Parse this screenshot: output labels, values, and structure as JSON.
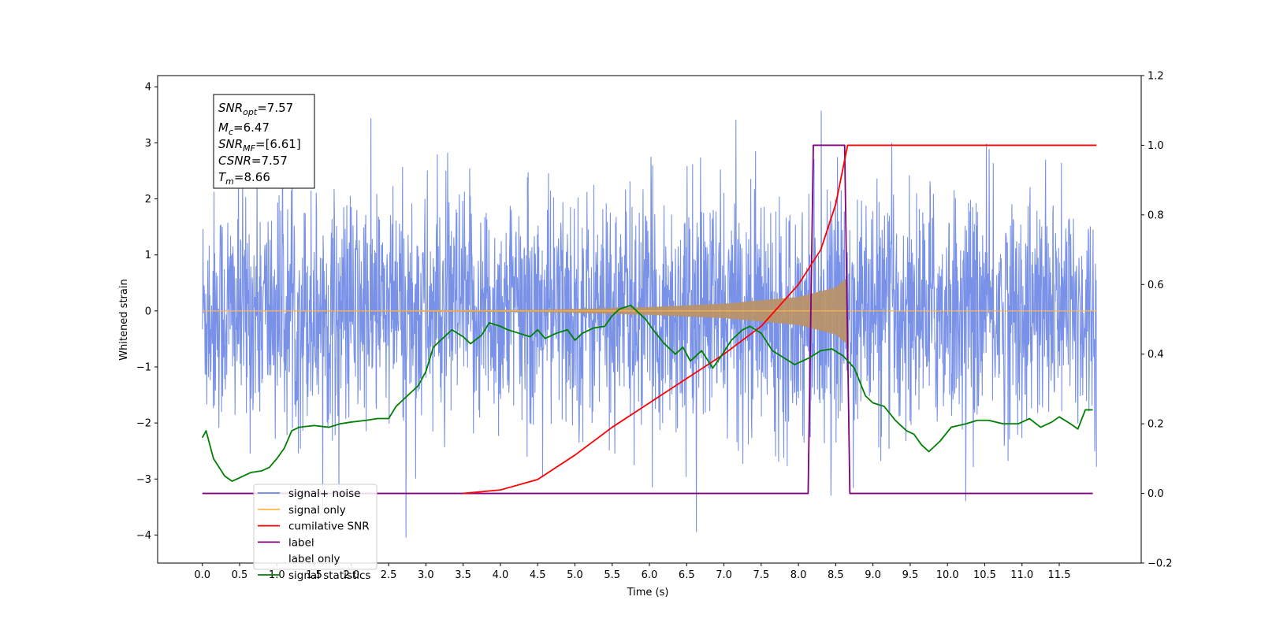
{
  "chart_data": {
    "type": "line",
    "xlabel": "Time (s)",
    "ylabel": "Whitened strain",
    "xlim": [
      -0.6,
      12.6
    ],
    "ylim": [
      -4.5,
      4.2
    ],
    "y2lim": [
      -0.2,
      1.2
    ],
    "x_ticks": [
      "0.0",
      "0.5",
      "1.0",
      "1.5",
      "2.0",
      "2.5",
      "3.0",
      "3.5",
      "4.0",
      "4.5",
      "5.0",
      "5.5",
      "6.0",
      "6.5",
      "7.0",
      "7.5",
      "8.0",
      "8.5",
      "9.0",
      "9.5",
      "10.0",
      "10.5",
      "11.0",
      "11.5"
    ],
    "y_ticks": [
      "4",
      "3",
      "2",
      "1",
      "0",
      "−1",
      "−2",
      "−3",
      "−4"
    ],
    "y2_ticks": [
      "1.2",
      "1.0",
      "0.8",
      "0.6",
      "0.4",
      "0.2",
      "0.0",
      "−0.2"
    ],
    "legend_position": "lower-left",
    "annotation": {
      "snr_opt": {
        "name": "SNR",
        "sub": "opt",
        "value": "=7.57"
      },
      "mc": {
        "name": "M",
        "sub": "c",
        "value": "=6.47"
      },
      "snr_mf": {
        "name": "SNR",
        "sub": "MF",
        "value": "=[6.61]"
      },
      "csnr": {
        "name": "CSNR",
        "sub": "",
        "value": "=7.57"
      },
      "tm": {
        "name": "T",
        "sub": "m",
        "value": "=8.66"
      }
    },
    "series": [
      {
        "name": "signal+ noise",
        "color": "#6a86e6",
        "axis": "left",
        "x_range": [
          0.0,
          12.0
        ],
        "amplitude_range": [
          -4.1,
          3.8
        ]
      },
      {
        "name": "signal only",
        "color": "#ffb74d",
        "axis": "left",
        "x_range": [
          0.0,
          12.0
        ],
        "envelope": {
          "x": [
            0,
            4.5,
            6.0,
            7.0,
            8.0,
            8.5,
            8.66
          ],
          "amp": [
            0,
            0.02,
            0.07,
            0.13,
            0.25,
            0.42,
            0.6
          ]
        }
      },
      {
        "name": "cumilative SNR",
        "color": "#ff0000",
        "axis": "right",
        "x": [
          3.5,
          4.0,
          4.5,
          5.0,
          5.5,
          6.0,
          6.5,
          7.0,
          7.5,
          8.0,
          8.3,
          8.5,
          8.66,
          9.0,
          10.0,
          11.0,
          12.0
        ],
        "values": [
          0.0,
          0.01,
          0.04,
          0.11,
          0.19,
          0.26,
          0.33,
          0.4,
          0.48,
          0.6,
          0.7,
          0.83,
          1.0,
          1.0,
          1.0,
          1.0,
          1.0
        ]
      },
      {
        "name": "label",
        "color": "#800080",
        "axis": "right",
        "x": [
          0.0,
          8.13,
          8.2,
          8.62,
          8.69,
          11.95
        ],
        "values": [
          0,
          0,
          1,
          1,
          0,
          0
        ]
      },
      {
        "name": "label only",
        "color": "#d9a0d9",
        "axis": "right",
        "x": [],
        "values": []
      },
      {
        "name": "signal statistics",
        "color": "#008000",
        "axis": "right",
        "x": [
          0.0,
          0.05,
          0.15,
          0.3,
          0.4,
          0.5,
          0.65,
          0.8,
          0.9,
          1.0,
          1.1,
          1.2,
          1.3,
          1.5,
          1.7,
          1.85,
          2.0,
          2.2,
          2.35,
          2.5,
          2.6,
          2.75,
          2.9,
          3.0,
          3.1,
          3.2,
          3.35,
          3.5,
          3.6,
          3.75,
          3.85,
          4.0,
          4.1,
          4.25,
          4.4,
          4.5,
          4.6,
          4.75,
          4.9,
          5.0,
          5.1,
          5.25,
          5.4,
          5.5,
          5.6,
          5.75,
          5.85,
          5.95,
          6.05,
          6.2,
          6.35,
          6.45,
          6.55,
          6.7,
          6.85,
          6.95,
          7.1,
          7.25,
          7.35,
          7.5,
          7.65,
          7.8,
          7.95,
          8.05,
          8.15,
          8.3,
          8.45,
          8.6,
          8.75,
          8.9,
          9.0,
          9.15,
          9.3,
          9.45,
          9.55,
          9.65,
          9.75,
          9.9,
          10.05,
          10.25,
          10.4,
          10.55,
          10.75,
          10.95,
          11.1,
          11.25,
          11.4,
          11.5,
          11.65,
          11.75,
          11.85,
          11.95
        ],
        "values": [
          0.16,
          0.18,
          0.1,
          0.05,
          0.035,
          0.045,
          0.06,
          0.065,
          0.075,
          0.1,
          0.13,
          0.18,
          0.19,
          0.195,
          0.19,
          0.2,
          0.205,
          0.21,
          0.215,
          0.215,
          0.25,
          0.28,
          0.31,
          0.35,
          0.42,
          0.44,
          0.47,
          0.45,
          0.43,
          0.455,
          0.49,
          0.48,
          0.47,
          0.46,
          0.45,
          0.47,
          0.445,
          0.46,
          0.47,
          0.44,
          0.46,
          0.475,
          0.48,
          0.51,
          0.53,
          0.54,
          0.52,
          0.5,
          0.47,
          0.43,
          0.4,
          0.42,
          0.38,
          0.41,
          0.36,
          0.39,
          0.44,
          0.47,
          0.48,
          0.46,
          0.41,
          0.39,
          0.37,
          0.38,
          0.39,
          0.41,
          0.415,
          0.395,
          0.36,
          0.28,
          0.26,
          0.25,
          0.21,
          0.18,
          0.17,
          0.14,
          0.12,
          0.15,
          0.19,
          0.2,
          0.21,
          0.21,
          0.2,
          0.2,
          0.215,
          0.19,
          0.205,
          0.22,
          0.2,
          0.185,
          0.24,
          0.24
        ]
      }
    ]
  }
}
